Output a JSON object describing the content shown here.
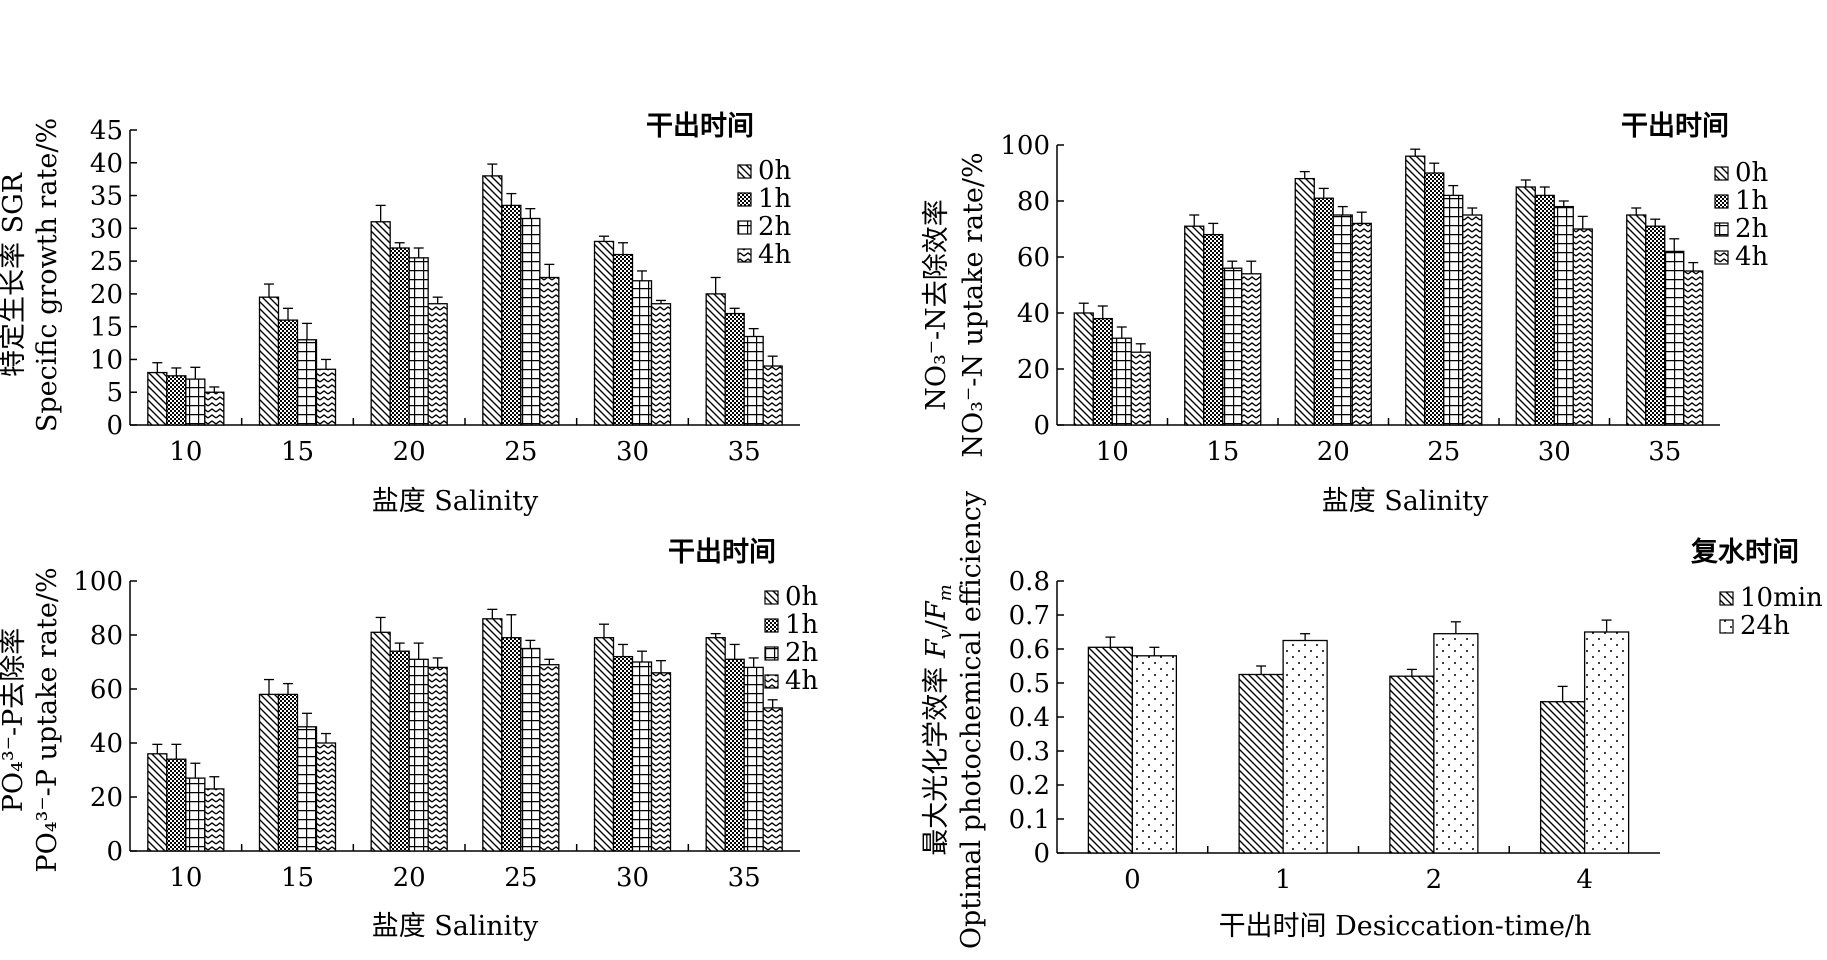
{
  "chart_data": [
    {
      "type": "bar",
      "ylabel_zh": "特定生长率 SGR",
      "ylabel_en": "Specific growth rate/%",
      "xlabel": "盐度 Salinity",
      "legend_title": "干出时间",
      "categories": [
        "10",
        "15",
        "20",
        "25",
        "30",
        "35"
      ],
      "ylim": [
        0,
        45
      ],
      "yticks": [
        "0",
        "5",
        "10",
        "15",
        "20",
        "25",
        "30",
        "35",
        "40",
        "45"
      ],
      "series": [
        {
          "name": "0h",
          "pattern": "diag",
          "values": [
            8,
            19.5,
            31,
            38,
            28,
            20
          ],
          "errors": [
            1.5,
            2,
            2.5,
            1.8,
            0.8,
            2.5
          ]
        },
        {
          "name": "1h",
          "pattern": "cross",
          "values": [
            7.5,
            16,
            27,
            33.5,
            26,
            17
          ],
          "errors": [
            1.2,
            1.8,
            0.8,
            1.8,
            1.8,
            0.8
          ]
        },
        {
          "name": "2h",
          "pattern": "grid",
          "values": [
            7,
            13,
            25.5,
            31.5,
            22,
            13.5
          ],
          "errors": [
            1.8,
            2.5,
            1.5,
            1.5,
            1.5,
            1.2
          ]
        },
        {
          "name": "4h",
          "pattern": "wave",
          "values": [
            5,
            8.5,
            18.5,
            22.5,
            18.5,
            9
          ],
          "errors": [
            0.8,
            1.5,
            1,
            2,
            0.5,
            1.5
          ]
        }
      ]
    },
    {
      "type": "bar",
      "ylabel_zh": "NO₃⁻-N去除效率",
      "ylabel_en": "NO₃⁻-N uptake rate/%",
      "xlabel": "盐度 Salinity",
      "legend_title": "干出时间",
      "categories": [
        "10",
        "15",
        "20",
        "25",
        "30",
        "35"
      ],
      "ylim": [
        0,
        100
      ],
      "yticks": [
        "0",
        "20",
        "40",
        "60",
        "80",
        "100"
      ],
      "series": [
        {
          "name": "0h",
          "pattern": "diag",
          "values": [
            40,
            71,
            88,
            96,
            85,
            75
          ],
          "errors": [
            3.5,
            4,
            2.5,
            2.5,
            2.5,
            2.5
          ]
        },
        {
          "name": "1h",
          "pattern": "cross",
          "values": [
            38,
            68,
            81,
            90,
            82,
            71
          ],
          "errors": [
            4.5,
            4,
            3.5,
            3.5,
            3,
            2.5
          ]
        },
        {
          "name": "2h",
          "pattern": "grid",
          "values": [
            31,
            56,
            75,
            82,
            78,
            62
          ],
          "errors": [
            4,
            2.5,
            3,
            3.5,
            2,
            4.5
          ]
        },
        {
          "name": "4h",
          "pattern": "wave",
          "values": [
            26,
            54,
            72,
            75,
            70,
            55
          ],
          "errors": [
            3,
            4.5,
            4,
            2.5,
            4.5,
            3
          ]
        }
      ]
    },
    {
      "type": "bar",
      "ylabel_zh": "PO₄³⁻-P去除率",
      "ylabel_en": "PO₄³⁻-P uptake rate/%",
      "xlabel": "盐度 Salinity",
      "legend_title": "干出时间",
      "categories": [
        "10",
        "15",
        "20",
        "25",
        "30",
        "35"
      ],
      "ylim": [
        0,
        100
      ],
      "yticks": [
        "0",
        "20",
        "40",
        "60",
        "80",
        "100"
      ],
      "series": [
        {
          "name": "0h",
          "pattern": "diag",
          "values": [
            36,
            58,
            81,
            86,
            79,
            79
          ],
          "errors": [
            3.5,
            5.5,
            5.5,
            3.5,
            5,
            1.5
          ]
        },
        {
          "name": "1h",
          "pattern": "cross",
          "values": [
            34,
            58,
            74,
            79,
            72,
            71
          ],
          "errors": [
            5.5,
            4,
            3,
            8.5,
            4.5,
            5.5
          ]
        },
        {
          "name": "2h",
          "pattern": "grid",
          "values": [
            27,
            46,
            71,
            75,
            70,
            68
          ],
          "errors": [
            5.5,
            5,
            6,
            3,
            4,
            3.5
          ]
        },
        {
          "name": "4h",
          "pattern": "wave",
          "values": [
            23,
            40,
            68,
            69,
            66,
            53
          ],
          "errors": [
            4.5,
            3.5,
            3.5,
            2,
            4.5,
            3
          ]
        }
      ]
    },
    {
      "type": "bar",
      "ylabel_zh": "最大光化学效率",
      "ylabel_fv": "F",
      "ylabel_fv_sub": "v",
      "ylabel_fm": "F",
      "ylabel_fm_sub": "m",
      "ylabel_slash": "/",
      "ylabel_en": "Optimal photochemical efficiency",
      "xlabel": "干出时间 Desiccation-time/h",
      "legend_title": "复水时间",
      "categories": [
        "0",
        "1",
        "2",
        "4"
      ],
      "ylim": [
        0,
        0.8
      ],
      "yticks": [
        "0",
        "0.1",
        "0.2",
        "0.3",
        "0.4",
        "0.5",
        "0.6",
        "0.7",
        "0.8"
      ],
      "series": [
        {
          "name": "10min",
          "pattern": "diag",
          "values": [
            0.605,
            0.525,
            0.52,
            0.445
          ],
          "errors": [
            0.03,
            0.025,
            0.02,
            0.045
          ]
        },
        {
          "name": "24h",
          "pattern": "dots",
          "values": [
            0.58,
            0.625,
            0.645,
            0.65
          ],
          "errors": [
            0.025,
            0.02,
            0.035,
            0.035
          ]
        }
      ]
    }
  ]
}
